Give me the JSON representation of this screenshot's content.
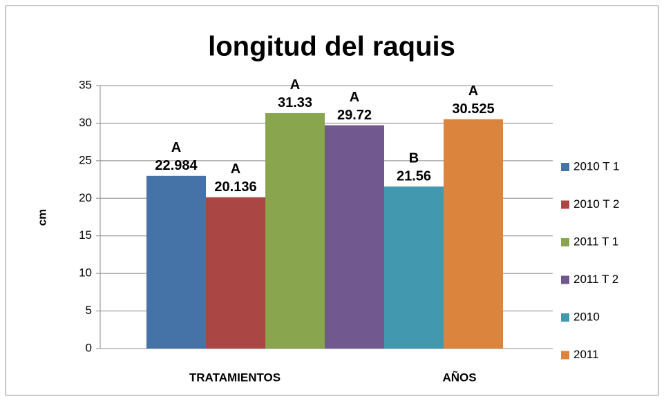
{
  "chart_data": {
    "type": "bar",
    "title": "longitud del raquis",
    "y_label": "cm",
    "categories": [
      "TRATAMIENTOS",
      "AÑOS"
    ],
    "series": [
      {
        "name": "2010 T 1",
        "color": "#4573a7",
        "values": [
          22.984,
          null
        ],
        "letters": [
          "A",
          null
        ]
      },
      {
        "name": "2010 T 2",
        "color": "#aa4643",
        "values": [
          20.136,
          null
        ],
        "letters": [
          "A",
          null
        ]
      },
      {
        "name": "2011 T 1",
        "color": "#89a54e",
        "values": [
          31.33,
          null
        ],
        "letters": [
          "A",
          null
        ]
      },
      {
        "name": "2011 T 2",
        "color": "#71588f",
        "values": [
          29.72,
          null
        ],
        "letters": [
          "A",
          null
        ]
      },
      {
        "name": "2010",
        "color": "#4198af",
        "values": [
          null,
          21.56
        ],
        "letters": [
          null,
          "B"
        ]
      },
      {
        "name": "2011",
        "color": "#db843d",
        "values": [
          null,
          30.525
        ],
        "letters": [
          null,
          "A"
        ]
      }
    ],
    "ylim": [
      0,
      35
    ],
    "yticks": [
      0,
      5,
      10,
      15,
      20,
      25,
      30,
      35
    ],
    "grid": true,
    "legend": "right"
  }
}
